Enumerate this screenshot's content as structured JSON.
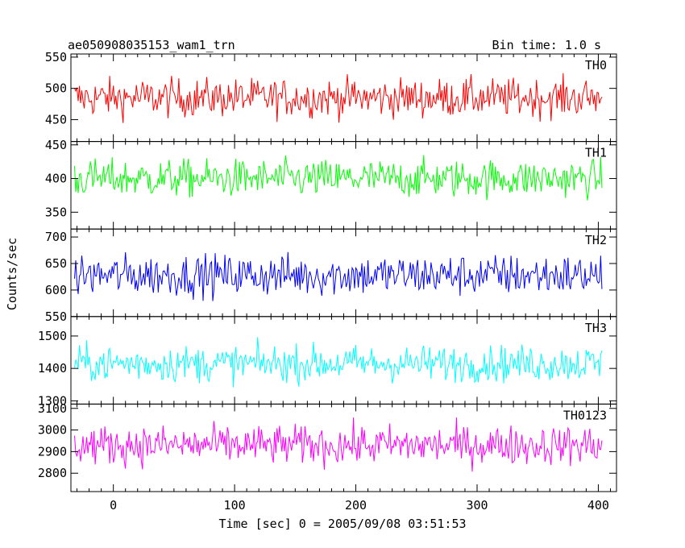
{
  "header": {
    "title": "ae050908035153_wam1_trn",
    "bin_time": "Bin time: 1.0 s"
  },
  "chart_data": {
    "type": "line",
    "ylabel": "Counts/sec",
    "xlabel": "Time [sec] 0 = 2005/09/08 03:51:53",
    "xlim": [
      -35,
      415
    ],
    "x_start": -32,
    "x_end": 403,
    "x_step": 1,
    "x_ticks": [
      0,
      100,
      200,
      300,
      400
    ],
    "x_tick_labels": [
      "0",
      "100",
      "200",
      "300",
      "400"
    ],
    "grid": false,
    "panels": [
      {
        "name": "TH0",
        "color": "#ff0000",
        "ylim": [
          415,
          555
        ],
        "y_ticks": [
          450,
          500,
          550
        ],
        "y_tick_labels": [
          "450",
          "500",
          "550"
        ],
        "mean": 485,
        "noise": 22
      },
      {
        "name": "TH1",
        "color": "#00ff00",
        "ylim": [
          325,
          455
        ],
        "y_ticks": [
          350,
          400,
          450
        ],
        "y_tick_labels": [
          "350",
          "400",
          "450"
        ],
        "mean": 400,
        "noise": 20
      },
      {
        "name": "TH2",
        "color": "#0000ff",
        "ylim": [
          550,
          715
        ],
        "y_ticks": [
          550,
          600,
          650,
          700
        ],
        "y_tick_labels": [
          "550",
          "600",
          "650",
          "700"
        ],
        "mean": 628,
        "noise": 28
      },
      {
        "name": "TH3",
        "color": "#00ffff",
        "ylim": [
          1290,
          1560
        ],
        "y_ticks": [
          1300,
          1400,
          1500
        ],
        "y_tick_labels": [
          "1300",
          "1400",
          "1500"
        ],
        "mean": 1415,
        "noise": 40
      },
      {
        "name": "TH0123",
        "color": "#ff00ff",
        "ylim": [
          2715,
          3120
        ],
        "y_ticks": [
          2800,
          2900,
          3000,
          3100
        ],
        "y_tick_labels": [
          "2800",
          "2900",
          "3000",
          "3100"
        ],
        "mean": 2930,
        "noise": 65
      }
    ]
  }
}
